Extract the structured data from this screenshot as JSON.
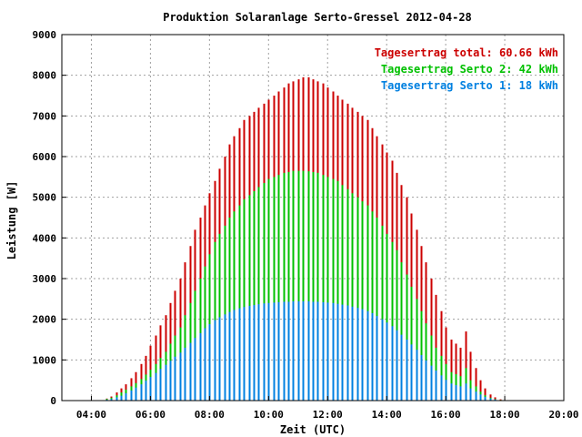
{
  "chart_data": {
    "type": "bar",
    "title": "Produktion Solaranlage Serto-Gressel 2012-04-28",
    "xlabel": "Zeit (UTC)",
    "ylabel": "Leistung [W]",
    "ylim": [
      0,
      9000
    ],
    "xlim_hours": [
      3.0,
      20.0
    ],
    "yticks": [
      "0",
      "1000",
      "2000",
      "3000",
      "4000",
      "5000",
      "6000",
      "7000",
      "8000",
      "9000"
    ],
    "xticks": [
      "04:00",
      "06:00",
      "08:00",
      "10:00",
      "12:00",
      "14:00",
      "16:00",
      "18:00",
      "20:00"
    ],
    "grid": true,
    "legend_position": "top-right",
    "legend": [
      {
        "label": "Tagesertrag total: 60.66 kWh",
        "color": "#cc0000"
      },
      {
        "label": "Tagesertrag Serto 2: 42 kWh",
        "color": "#00c000"
      },
      {
        "label": "Tagesertrag Serto 1: 18 kWh",
        "color": "#0080e0"
      }
    ],
    "series_colors": {
      "total": "#cc0000",
      "serto2": "#00c000",
      "serto1": "#0080e0"
    },
    "x": [
      "04:30",
      "04:40",
      "04:50",
      "05:00",
      "05:10",
      "05:20",
      "05:30",
      "05:40",
      "05:50",
      "06:00",
      "06:10",
      "06:20",
      "06:30",
      "06:40",
      "06:50",
      "07:00",
      "07:10",
      "07:20",
      "07:30",
      "07:40",
      "07:50",
      "08:00",
      "08:10",
      "08:20",
      "08:30",
      "08:40",
      "08:50",
      "09:00",
      "09:10",
      "09:20",
      "09:30",
      "09:40",
      "09:50",
      "10:00",
      "10:10",
      "10:20",
      "10:30",
      "10:40",
      "10:50",
      "11:00",
      "11:10",
      "11:20",
      "11:30",
      "11:40",
      "11:50",
      "12:00",
      "12:10",
      "12:20",
      "12:30",
      "12:40",
      "12:50",
      "13:00",
      "13:10",
      "13:20",
      "13:30",
      "13:40",
      "13:50",
      "14:00",
      "14:10",
      "14:20",
      "14:30",
      "14:40",
      "14:50",
      "15:00",
      "15:10",
      "15:20",
      "15:30",
      "15:40",
      "15:50",
      "16:00",
      "16:10",
      "16:20",
      "16:30",
      "16:40",
      "16:50",
      "17:00",
      "17:10",
      "17:20",
      "17:30",
      "17:40",
      "17:50",
      "18:00"
    ],
    "series": [
      {
        "name": "Tagesertrag total",
        "values": [
          50,
          100,
          200,
          300,
          400,
          550,
          700,
          900,
          1100,
          1350,
          1600,
          1850,
          2100,
          2400,
          2700,
          3000,
          3400,
          3800,
          4200,
          4500,
          4800,
          5100,
          5400,
          5700,
          6000,
          6300,
          6500,
          6700,
          6900,
          7000,
          7100,
          7200,
          7300,
          7400,
          7500,
          7600,
          7700,
          7800,
          7850,
          7900,
          7950,
          7950,
          7900,
          7850,
          7800,
          7700,
          7600,
          7500,
          7400,
          7300,
          7200,
          7100,
          7000,
          6900,
          6700,
          6500,
          6300,
          6100,
          5900,
          5600,
          5300,
          5000,
          4600,
          4200,
          3800,
          3400,
          3000,
          2600,
          2200,
          1800,
          1500,
          1400,
          1300,
          1700,
          1200,
          800,
          500,
          300,
          150,
          80,
          30,
          0
        ]
      },
      {
        "name": "Tagesertrag Serto 2",
        "values": [
          40,
          70,
          130,
          200,
          270,
          350,
          430,
          530,
          640,
          760,
          900,
          1050,
          1200,
          1400,
          1600,
          1800,
          2100,
          2400,
          2700,
          3000,
          3300,
          3600,
          3900,
          4100,
          4300,
          4500,
          4650,
          4800,
          4950,
          5050,
          5150,
          5250,
          5350,
          5450,
          5500,
          5550,
          5600,
          5620,
          5650,
          5650,
          5650,
          5640,
          5620,
          5600,
          5550,
          5500,
          5450,
          5400,
          5300,
          5200,
          5100,
          5000,
          4900,
          4800,
          4650,
          4500,
          4300,
          4100,
          3900,
          3700,
          3400,
          3100,
          2800,
          2500,
          2200,
          1900,
          1600,
          1300,
          1100,
          900,
          700,
          650,
          600,
          800,
          500,
          350,
          220,
          130,
          70,
          35,
          15,
          0
        ]
      },
      {
        "name": "Tagesertrag Serto 1",
        "values": [
          20,
          40,
          80,
          120,
          180,
          250,
          320,
          400,
          490,
          580,
          680,
          780,
          880,
          980,
          1080,
          1180,
          1300,
          1420,
          1540,
          1660,
          1780,
          1880,
          1980,
          2050,
          2120,
          2180,
          2230,
          2270,
          2300,
          2330,
          2350,
          2370,
          2390,
          2400,
          2410,
          2420,
          2430,
          2430,
          2440,
          2440,
          2440,
          2440,
          2430,
          2430,
          2420,
          2410,
          2400,
          2380,
          2360,
          2340,
          2310,
          2280,
          2250,
          2200,
          2150,
          2080,
          2000,
          1920,
          1830,
          1730,
          1620,
          1500,
          1380,
          1250,
          1120,
          990,
          860,
          740,
          620,
          510,
          420,
          380,
          350,
          420,
          300,
          220,
          150,
          90,
          50,
          25,
          10,
          0
        ]
      }
    ]
  }
}
